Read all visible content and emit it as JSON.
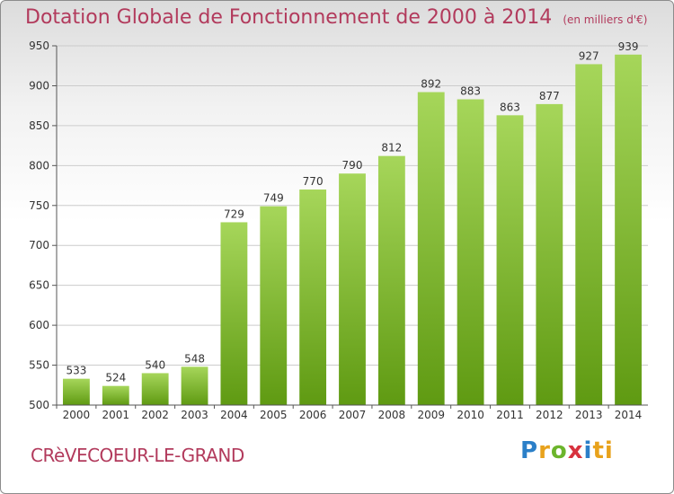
{
  "header": {
    "title": "Dotation Globale de Fonctionnement de 2000 à 2014",
    "unit": "(en milliers d'€)"
  },
  "footer": {
    "commune": "CRèVECOEUR-LE-GRAND",
    "logo": "Proxiti"
  },
  "chart_data": {
    "type": "bar",
    "title": "Dotation Globale de Fonctionnement de 2000 à 2014",
    "subtitle": "(en milliers d'€)",
    "xlabel": "",
    "ylabel": "",
    "categories": [
      "2000",
      "2001",
      "2002",
      "2003",
      "2004",
      "2005",
      "2006",
      "2007",
      "2008",
      "2009",
      "2010",
      "2011",
      "2012",
      "2013",
      "2014"
    ],
    "values": [
      533,
      524,
      540,
      548,
      729,
      749,
      770,
      790,
      812,
      892,
      883,
      863,
      877,
      927,
      939
    ],
    "ylim": [
      500,
      950
    ],
    "yticks": [
      500,
      550,
      600,
      650,
      700,
      750,
      800,
      850,
      900,
      950
    ],
    "grid": true,
    "colors": {
      "bar_light": "#a6d65a",
      "bar_dark": "#5f9a12",
      "grid": "#cccccc",
      "axis": "#555555"
    }
  }
}
